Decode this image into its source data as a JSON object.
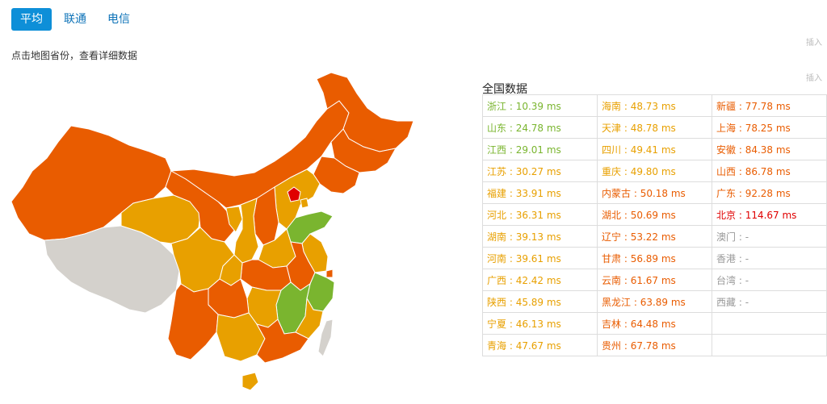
{
  "tabs": [
    {
      "label": "平均",
      "active": true
    },
    {
      "label": "联通",
      "active": false
    },
    {
      "label": "电信",
      "active": false
    }
  ],
  "hint": "点击地图省份，查看详细数据",
  "table_title": "全国数据",
  "colors": {
    "green": "#7ab52f",
    "amber": "#e8a000",
    "orange": "#e95c00",
    "red": "#e00000",
    "gray": "#999999",
    "tab_active": "#0e8fd8"
  },
  "table_rows": [
    [
      {
        "name": "浙江",
        "value": "10.39 ms",
        "level": "green"
      },
      {
        "name": "海南",
        "value": "48.73 ms",
        "level": "amber"
      },
      {
        "name": "新疆",
        "value": "77.78 ms",
        "level": "orange"
      }
    ],
    [
      {
        "name": "山东",
        "value": "24.78 ms",
        "level": "green"
      },
      {
        "name": "天津",
        "value": "48.78 ms",
        "level": "amber"
      },
      {
        "name": "上海",
        "value": "78.25 ms",
        "level": "orange"
      }
    ],
    [
      {
        "name": "江西",
        "value": "29.01 ms",
        "level": "green"
      },
      {
        "name": "四川",
        "value": "49.41 ms",
        "level": "amber"
      },
      {
        "name": "安徽",
        "value": "84.38 ms",
        "level": "orange"
      }
    ],
    [
      {
        "name": "江苏",
        "value": "30.27 ms",
        "level": "amber"
      },
      {
        "name": "重庆",
        "value": "49.80 ms",
        "level": "amber"
      },
      {
        "name": "山西",
        "value": "86.78 ms",
        "level": "orange"
      }
    ],
    [
      {
        "name": "福建",
        "value": "33.91 ms",
        "level": "amber"
      },
      {
        "name": "内蒙古",
        "value": "50.18 ms",
        "level": "orange"
      },
      {
        "name": "广东",
        "value": "92.28 ms",
        "level": "orange"
      }
    ],
    [
      {
        "name": "河北",
        "value": "36.31 ms",
        "level": "amber"
      },
      {
        "name": "湖北",
        "value": "50.69 ms",
        "level": "orange"
      },
      {
        "name": "北京",
        "value": "114.67 ms",
        "level": "red"
      }
    ],
    [
      {
        "name": "湖南",
        "value": "39.13 ms",
        "level": "amber"
      },
      {
        "name": "辽宁",
        "value": "53.22 ms",
        "level": "orange"
      },
      {
        "name": "澳门",
        "value": "-",
        "level": "gray"
      }
    ],
    [
      {
        "name": "河南",
        "value": "39.61 ms",
        "level": "amber"
      },
      {
        "name": "甘肃",
        "value": "56.89 ms",
        "level": "orange"
      },
      {
        "name": "香港",
        "value": "-",
        "level": "gray"
      }
    ],
    [
      {
        "name": "广西",
        "value": "42.42 ms",
        "level": "amber"
      },
      {
        "name": "云南",
        "value": "61.67 ms",
        "level": "orange"
      },
      {
        "name": "台湾",
        "value": "-",
        "level": "gray"
      }
    ],
    [
      {
        "name": "陕西",
        "value": "45.89 ms",
        "level": "amber"
      },
      {
        "name": "黑龙江",
        "value": "63.89 ms",
        "level": "orange"
      },
      {
        "name": "西藏",
        "value": "-",
        "level": "gray"
      }
    ],
    [
      {
        "name": "宁夏",
        "value": "46.13 ms",
        "level": "amber"
      },
      {
        "name": "吉林",
        "value": "64.48 ms",
        "level": "orange"
      },
      null
    ],
    [
      {
        "name": "青海",
        "value": "47.67 ms",
        "level": "amber"
      },
      {
        "name": "贵州",
        "value": "67.78 ms",
        "level": "orange"
      },
      null
    ]
  ],
  "side_ghost": [
    "插入",
    "插入"
  ]
}
